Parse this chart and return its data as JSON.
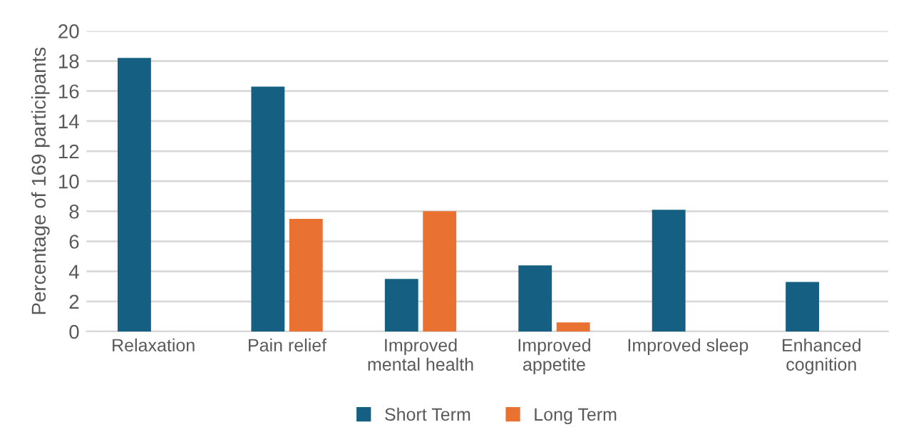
{
  "chart_data": {
    "type": "bar",
    "ylabel": "Percentage of 169 participants",
    "categories": [
      "Relaxation",
      "Pain relief",
      "Improved\nmental health",
      "Improved\nappetite",
      "Improved sleep",
      "Enhanced\ncognition"
    ],
    "series": [
      {
        "name": "Short Term",
        "color": "#156082",
        "values": [
          18.2,
          16.3,
          3.5,
          4.4,
          8.1,
          3.3
        ]
      },
      {
        "name": "Long Term",
        "color": "#e97132",
        "values": [
          null,
          7.5,
          8.0,
          0.6,
          null,
          null
        ]
      }
    ],
    "ylim": [
      0,
      20
    ],
    "yticks": [
      0,
      2,
      4,
      6,
      8,
      10,
      12,
      14,
      16,
      18,
      20
    ],
    "grid": "y",
    "legend": "bottom"
  }
}
